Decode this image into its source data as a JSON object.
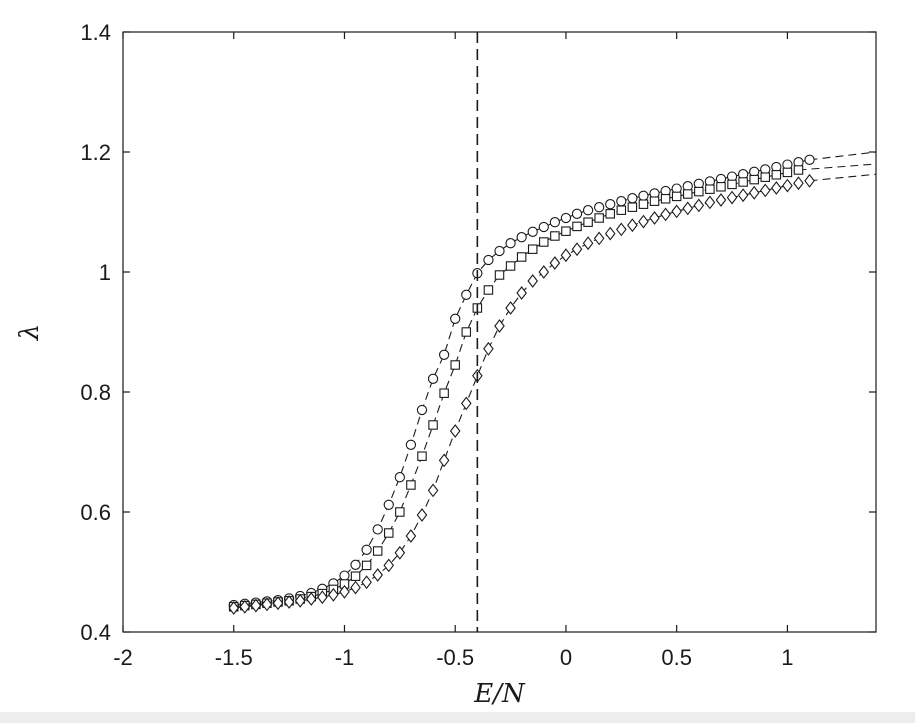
{
  "chart_data": {
    "type": "line",
    "title": "",
    "xlabel": "E/N",
    "ylabel": "λ",
    "xlim": [
      -2,
      1.4
    ],
    "ylim": [
      0.4,
      1.4
    ],
    "x_ticks": [
      -2,
      -1.5,
      -1,
      -0.5,
      0,
      0.5,
      1
    ],
    "x_tick_labels": [
      "-2",
      "-1.5",
      "-1",
      "-0.5",
      "0",
      "0.5",
      "1"
    ],
    "y_ticks": [
      0.4,
      0.6,
      0.8,
      1.0,
      1.2,
      1.4
    ],
    "y_tick_labels": [
      "0.4",
      "0.6",
      "0.8",
      "1",
      "1.2",
      "1.4"
    ],
    "grid": false,
    "legend": "none",
    "vertical_line_x": -0.4,
    "line_color": "#1a1a1a",
    "series": [
      {
        "marker": "circle",
        "x": [
          -1.5,
          -1.45,
          -1.4,
          -1.35,
          -1.3,
          -1.25,
          -1.2,
          -1.15,
          -1.1,
          -1.05,
          -1.0,
          -0.95,
          -0.9,
          -0.85,
          -0.8,
          -0.75,
          -0.7,
          -0.65,
          -0.6,
          -0.55,
          -0.5,
          -0.45,
          -0.4,
          -0.35,
          -0.3,
          -0.25,
          -0.2,
          -0.15,
          -0.1,
          -0.05,
          0.0,
          0.05,
          0.1,
          0.15,
          0.2,
          0.25,
          0.3,
          0.35,
          0.4,
          0.45,
          0.5,
          0.55,
          0.6,
          0.65,
          0.7,
          0.75,
          0.8,
          0.85,
          0.9,
          0.95,
          1.0,
          1.05,
          1.1
        ],
        "y": [
          0.445,
          0.447,
          0.449,
          0.451,
          0.453,
          0.456,
          0.46,
          0.465,
          0.472,
          0.481,
          0.494,
          0.512,
          0.537,
          0.571,
          0.612,
          0.658,
          0.712,
          0.77,
          0.822,
          0.862,
          0.922,
          0.962,
          0.998,
          1.02,
          1.035,
          1.048,
          1.058,
          1.067,
          1.075,
          1.083,
          1.09,
          1.097,
          1.103,
          1.108,
          1.113,
          1.118,
          1.123,
          1.127,
          1.131,
          1.135,
          1.139,
          1.143,
          1.147,
          1.151,
          1.155,
          1.159,
          1.163,
          1.167,
          1.171,
          1.175,
          1.179,
          1.183,
          1.187
        ],
        "extension": {
          "x": [
            1.1,
            1.4
          ],
          "y": [
            1.187,
            1.2
          ]
        }
      },
      {
        "marker": "square",
        "x": [
          -1.5,
          -1.45,
          -1.4,
          -1.35,
          -1.3,
          -1.25,
          -1.2,
          -1.15,
          -1.1,
          -1.05,
          -1.0,
          -0.95,
          -0.9,
          -0.85,
          -0.8,
          -0.75,
          -0.7,
          -0.65,
          -0.6,
          -0.55,
          -0.5,
          -0.45,
          -0.4,
          -0.35,
          -0.3,
          -0.25,
          -0.2,
          -0.15,
          -0.1,
          -0.05,
          0.0,
          0.05,
          0.1,
          0.15,
          0.2,
          0.25,
          0.3,
          0.35,
          0.4,
          0.45,
          0.5,
          0.55,
          0.6,
          0.65,
          0.7,
          0.75,
          0.8,
          0.85,
          0.9,
          0.95,
          1.0,
          1.05
        ],
        "y": [
          0.442,
          0.444,
          0.446,
          0.448,
          0.45,
          0.452,
          0.455,
          0.459,
          0.464,
          0.471,
          0.48,
          0.493,
          0.511,
          0.535,
          0.565,
          0.6,
          0.645,
          0.693,
          0.745,
          0.798,
          0.845,
          0.9,
          0.94,
          0.97,
          0.995,
          1.01,
          1.025,
          1.038,
          1.05,
          1.06,
          1.068,
          1.076,
          1.083,
          1.09,
          1.097,
          1.103,
          1.108,
          1.113,
          1.118,
          1.122,
          1.126,
          1.13,
          1.134,
          1.138,
          1.142,
          1.146,
          1.15,
          1.154,
          1.158,
          1.162,
          1.166,
          1.17
        ],
        "extension": {
          "x": [
            1.05,
            1.4
          ],
          "y": [
            1.17,
            1.18
          ]
        }
      },
      {
        "marker": "diamond",
        "x": [
          -1.5,
          -1.45,
          -1.4,
          -1.35,
          -1.3,
          -1.25,
          -1.2,
          -1.15,
          -1.1,
          -1.05,
          -1.0,
          -0.95,
          -0.9,
          -0.85,
          -0.8,
          -0.75,
          -0.7,
          -0.65,
          -0.6,
          -0.55,
          -0.5,
          -0.45,
          -0.4,
          -0.35,
          -0.3,
          -0.25,
          -0.2,
          -0.15,
          -0.1,
          -0.05,
          0.0,
          0.05,
          0.1,
          0.15,
          0.2,
          0.25,
          0.3,
          0.35,
          0.4,
          0.45,
          0.5,
          0.55,
          0.6,
          0.65,
          0.7,
          0.75,
          0.8,
          0.85,
          0.9,
          0.95,
          1.0,
          1.05,
          1.1
        ],
        "y": [
          0.44,
          0.442,
          0.444,
          0.446,
          0.448,
          0.45,
          0.452,
          0.455,
          0.458,
          0.462,
          0.467,
          0.474,
          0.483,
          0.495,
          0.511,
          0.532,
          0.56,
          0.595,
          0.636,
          0.686,
          0.735,
          0.781,
          0.827,
          0.872,
          0.91,
          0.94,
          0.965,
          0.985,
          1.0,
          1.015,
          1.028,
          1.038,
          1.048,
          1.056,
          1.064,
          1.071,
          1.078,
          1.084,
          1.09,
          1.096,
          1.101,
          1.106,
          1.111,
          1.116,
          1.12,
          1.124,
          1.128,
          1.132,
          1.136,
          1.14,
          1.144,
          1.148,
          1.152
        ],
        "extension": {
          "x": [
            1.1,
            1.4
          ],
          "y": [
            1.152,
            1.163
          ]
        }
      }
    ]
  }
}
